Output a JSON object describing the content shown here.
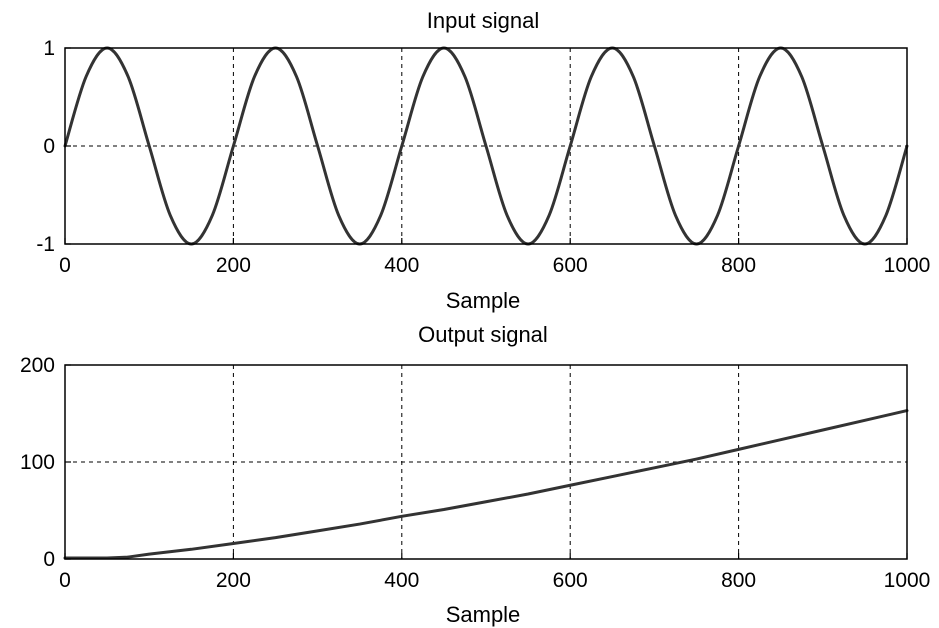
{
  "chart_data": [
    {
      "type": "line",
      "title": "Input signal",
      "xlabel": "Sample",
      "ylabel": "",
      "xlim": [
        0,
        1000
      ],
      "ylim": [
        -1,
        1
      ],
      "xticks": [
        0,
        200,
        400,
        600,
        800,
        1000
      ],
      "xtick_labels": [
        "0",
        "200",
        "400",
        "600",
        "800",
        "1000"
      ],
      "yticks": [
        -1,
        0,
        1
      ],
      "ytick_labels": [
        "-1",
        "0",
        "1"
      ],
      "grid": true,
      "series": [
        {
          "color": "#333333",
          "x": [
            0,
            25,
            50,
            75,
            100,
            125,
            150,
            175,
            200,
            225,
            250,
            275,
            300,
            325,
            350,
            375,
            400,
            425,
            450,
            475,
            500,
            525,
            550,
            575,
            600,
            625,
            650,
            675,
            700,
            725,
            750,
            775,
            800,
            825,
            850,
            875,
            900,
            925,
            950,
            975,
            1000
          ],
          "y": [
            0,
            0.707,
            1,
            0.707,
            0,
            -0.707,
            -1,
            -0.707,
            0,
            0.707,
            1,
            0.707,
            0,
            -0.707,
            -1,
            -0.707,
            0,
            0.707,
            1,
            0.707,
            0,
            -0.707,
            -1,
            -0.707,
            0,
            0.707,
            1,
            0.707,
            0,
            -0.707,
            -1,
            -0.707,
            0,
            0.707,
            1,
            0.707,
            0,
            -0.707,
            -1,
            -0.707,
            0
          ]
        }
      ]
    },
    {
      "type": "line",
      "title": "Output signal",
      "xlabel": "Sample",
      "ylabel": "",
      "xlim": [
        0,
        1000
      ],
      "ylim": [
        0,
        200
      ],
      "xticks": [
        0,
        200,
        400,
        600,
        800,
        1000
      ],
      "xtick_labels": [
        "0",
        "200",
        "400",
        "600",
        "800",
        "1000"
      ],
      "yticks": [
        0,
        100,
        200
      ],
      "ytick_labels": [
        "0",
        "100",
        "200"
      ],
      "grid": true,
      "series": [
        {
          "color": "#333333",
          "x": [
            0,
            50,
            75,
            100,
            150,
            200,
            250,
            300,
            350,
            400,
            450,
            500,
            550,
            600,
            650,
            700,
            750,
            800,
            850,
            900,
            950,
            1000
          ],
          "y": [
            1,
            1,
            2,
            5,
            10,
            16,
            22,
            29,
            36,
            44,
            51,
            59,
            67,
            76,
            85,
            94,
            103,
            113,
            123,
            133,
            143,
            153
          ]
        }
      ]
    }
  ]
}
